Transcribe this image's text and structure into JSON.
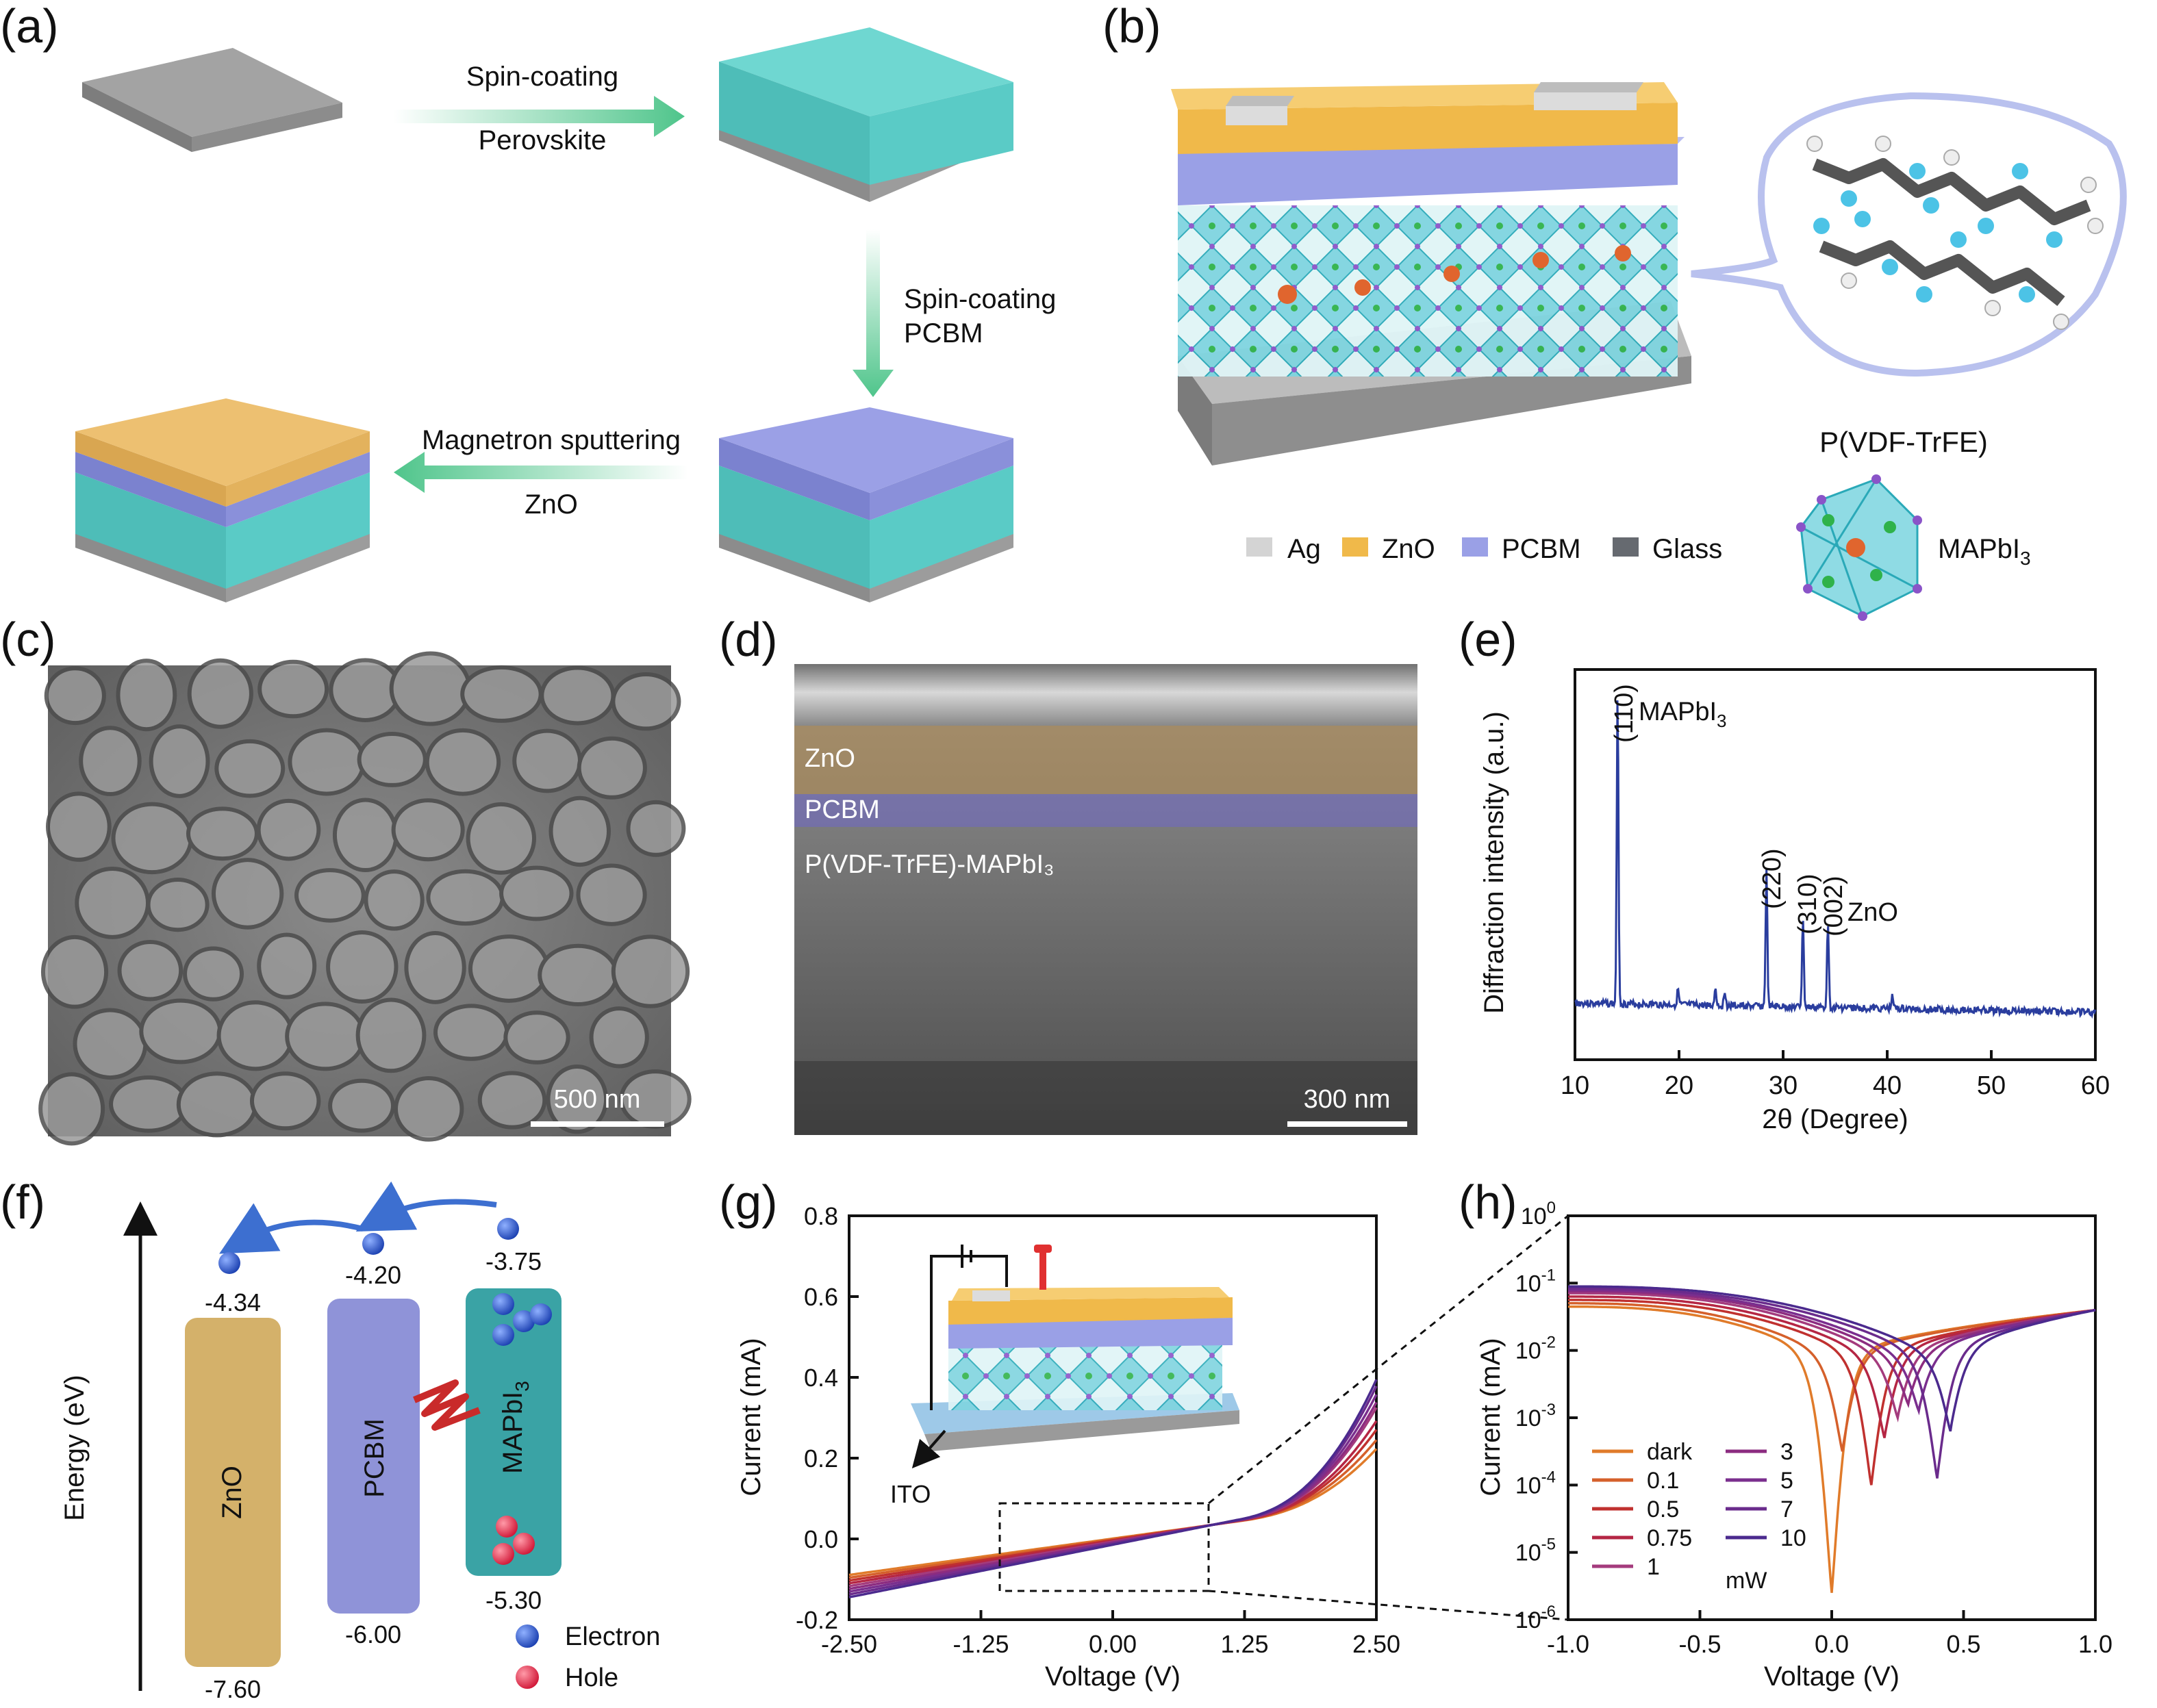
{
  "panel_labels": [
    "(a)",
    "(b)",
    "(c)",
    "(d)",
    "(e)",
    "(f)",
    "(g)",
    "(h)"
  ],
  "panel_a": {
    "step1_top": "Spin-coating",
    "step1_bottom": "Perovskite",
    "step2_top": "Spin-coating",
    "step2_bottom": "PCBM",
    "step3_top": "Magnetron sputtering",
    "step3_bottom": "ZnO",
    "colors": {
      "glass": "#9a9a9a",
      "perovskite": "#5fcfca",
      "pcbm": "#8f96dc",
      "zno": "#e8b563"
    }
  },
  "panel_b": {
    "polymer_label": "P(VDF-TrFE)",
    "legend": [
      "Ag",
      "ZnO",
      "PCBM",
      "Glass"
    ],
    "legend_colors": [
      "#d4d4d4",
      "#f0b94a",
      "#9aa0e6",
      "#666a70"
    ],
    "crystal_label": "MAPbI",
    "crystal_sub": "3"
  },
  "panel_c": {
    "scale_bar": "500 nm"
  },
  "panel_d": {
    "layers": [
      "ZnO",
      "PCBM",
      "P(VDF-TrFE)-MAPbI₃"
    ],
    "scale_bar": "300 nm"
  },
  "panel_e": {
    "xlabel": "2θ (Degree)",
    "ylabel": "Diffraction intensity (a.u.)",
    "peak_110": "(110)",
    "peak_110_name": "MAPbI",
    "peak_110_sub": "3",
    "peak_220": "(220)",
    "peak_310": "(310)",
    "peak_002": "(002)",
    "peak_002_name": "ZnO",
    "chart_data": {
      "type": "line",
      "x_ticks": [
        "10",
        "20",
        "30",
        "40",
        "50",
        "60"
      ],
      "xlim": [
        10,
        60
      ],
      "peaks": [
        {
          "x": 14.1,
          "height": 1.0
        },
        {
          "x": 19.9,
          "height": 0.05
        },
        {
          "x": 23.5,
          "height": 0.06
        },
        {
          "x": 24.4,
          "height": 0.05
        },
        {
          "x": 28.4,
          "height": 0.44
        },
        {
          "x": 31.9,
          "height": 0.29
        },
        {
          "x": 34.3,
          "height": 0.28
        },
        {
          "x": 40.5,
          "height": 0.05
        }
      ],
      "color": "#2a3d9e"
    }
  },
  "panel_f": {
    "ylabel": "Energy (eV)",
    "bars": [
      {
        "name": "ZnO",
        "top": "-4.34",
        "bottom": "-7.60",
        "color": "#d4b16a"
      },
      {
        "name": "PCBM",
        "top": "-4.20",
        "bottom": "-6.00",
        "color": "#8f93d8"
      },
      {
        "name": "MAPbI",
        "sub": "3",
        "top": "-3.75",
        "bottom": "-5.30",
        "color": "#3aa3a5"
      }
    ],
    "legend_electron": "Electron",
    "legend_hole": "Hole"
  },
  "panel_g": {
    "xlabel": "Voltage (V)",
    "ylabel": "Current (mA)",
    "inset_label": "ITO",
    "chart_data": {
      "type": "line",
      "x_ticks": [
        "-2.50",
        "-1.25",
        "0.00",
        "1.25",
        "2.50"
      ],
      "y_ticks": [
        "-0.2",
        "0.0",
        "0.2",
        "0.4",
        "0.6",
        "0.8"
      ],
      "xlim": [
        -2.5,
        2.5
      ],
      "ylim": [
        -0.2,
        0.8
      ],
      "series": [
        {
          "name": "dark",
          "color": "#e07b2a",
          "knee": 2.0,
          "scale": 0.12,
          "slope": 0.036
        },
        {
          "name": "0.1",
          "color": "#d5602b",
          "knee": 1.95,
          "scale": 0.125,
          "slope": 0.038
        },
        {
          "name": "0.5",
          "color": "#c0312f",
          "knee": 1.9,
          "scale": 0.13,
          "slope": 0.04
        },
        {
          "name": "0.75",
          "color": "#b52644",
          "knee": 1.85,
          "scale": 0.13,
          "slope": 0.042
        },
        {
          "name": "1",
          "color": "#a43b7d",
          "knee": 1.8,
          "scale": 0.135,
          "slope": 0.044
        },
        {
          "name": "3",
          "color": "#8c2c80",
          "knee": 1.78,
          "scale": 0.135,
          "slope": 0.046
        },
        {
          "name": "5",
          "color": "#7a2e8e",
          "knee": 1.75,
          "scale": 0.135,
          "slope": 0.048
        },
        {
          "name": "7",
          "color": "#6a2b8c",
          "knee": 1.72,
          "scale": 0.135,
          "slope": 0.05
        },
        {
          "name": "10",
          "color": "#4b2a8e",
          "knee": 1.7,
          "scale": 0.135,
          "slope": 0.052
        }
      ]
    }
  },
  "panel_h": {
    "xlabel": "Voltage (V)",
    "ylabel": "Current (mA)",
    "unit_label": "mW",
    "chart_data": {
      "type": "line",
      "y_scale": "log",
      "x_ticks": [
        "-1.0",
        "-0.5",
        "0.0",
        "0.5",
        "1.0"
      ],
      "y_tick_exponents": [
        "0",
        "-1",
        "-2",
        "-3",
        "-4",
        "-5",
        "-6"
      ],
      "xlim": [
        -1.0,
        1.0
      ],
      "ylim_exponent": [
        -6,
        0
      ],
      "series": [
        {
          "name": "dark",
          "color": "#e07b2a",
          "dip_x": 0.0,
          "dip_log": -5.6,
          "left_log": -1.35
        },
        {
          "name": "0.1",
          "color": "#d5602b",
          "dip_x": 0.04,
          "dip_log": -3.5,
          "left_log": -1.3
        },
        {
          "name": "0.5",
          "color": "#c0312f",
          "dip_x": 0.15,
          "dip_log": -4.0,
          "left_log": -1.25
        },
        {
          "name": "0.75",
          "color": "#b52644",
          "dip_x": 0.2,
          "dip_log": -3.3,
          "left_log": -1.2
        },
        {
          "name": "1",
          "color": "#a43b7d",
          "dip_x": 0.25,
          "dip_log": -3.0,
          "left_log": -1.15
        },
        {
          "name": "3",
          "color": "#8c2c80",
          "dip_x": 0.29,
          "dip_log": -2.8,
          "left_log": -1.12
        },
        {
          "name": "5",
          "color": "#7a2e8e",
          "dip_x": 0.33,
          "dip_log": -2.9,
          "left_log": -1.1
        },
        {
          "name": "7",
          "color": "#6a2b8c",
          "dip_x": 0.4,
          "dip_log": -3.9,
          "left_log": -1.08
        },
        {
          "name": "10",
          "color": "#4b2a8e",
          "dip_x": 0.45,
          "dip_log": -3.2,
          "left_log": -1.05
        }
      ]
    }
  }
}
